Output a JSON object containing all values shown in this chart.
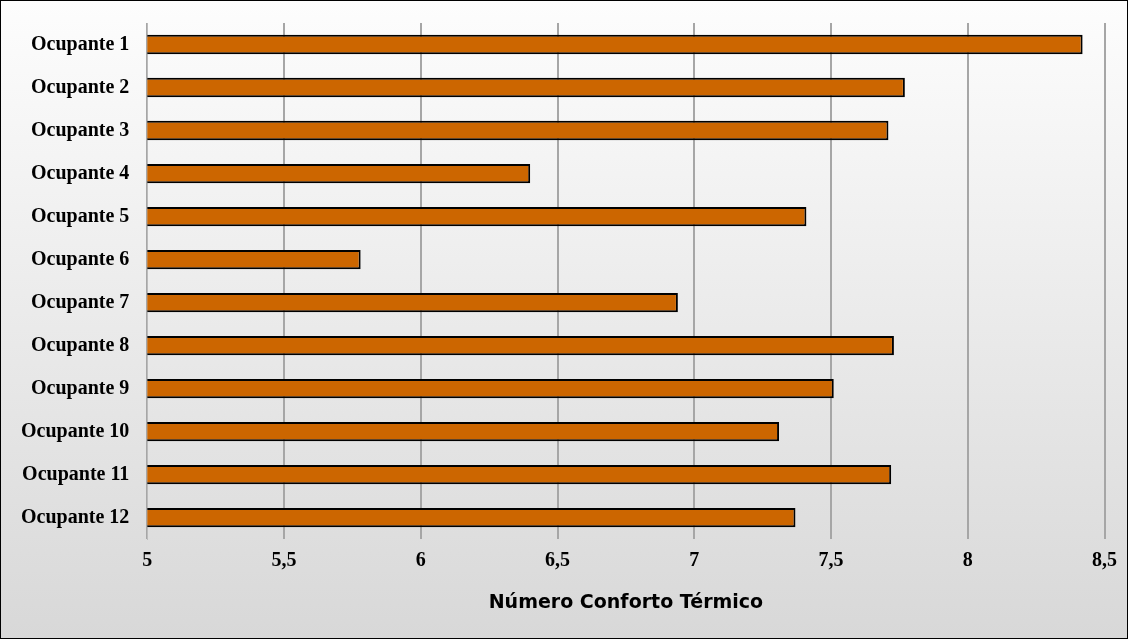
{
  "chart_data": {
    "type": "bar",
    "orientation": "horizontal",
    "xlabel": "Número Conforto Térmico",
    "categories": [
      "Ocupante 1",
      "Ocupante 2",
      "Ocupante 3",
      "Ocupante 4",
      "Ocupante 5",
      "Ocupante 6",
      "Ocupante 7",
      "Ocupante 8",
      "Ocupante 9",
      "Ocupante 10",
      "Ocupante 11",
      "Ocupante 12"
    ],
    "values": [
      8.42,
      7.77,
      7.71,
      6.4,
      7.41,
      5.78,
      6.94,
      7.73,
      7.51,
      7.31,
      7.72,
      7.37
    ],
    "color": "#cc6600",
    "xlim": [
      5,
      8.5
    ],
    "xticks": [
      {
        "value": 5,
        "label": "5"
      },
      {
        "value": 5.5,
        "label": "5,5"
      },
      {
        "value": 6,
        "label": "6"
      },
      {
        "value": 6.5,
        "label": "6,5"
      },
      {
        "value": 7,
        "label": "7"
      },
      {
        "value": 7.5,
        "label": "7,5"
      },
      {
        "value": 8,
        "label": "8"
      },
      {
        "value": 8.5,
        "label": "8,5"
      }
    ],
    "grid": "x",
    "legend": false
  }
}
